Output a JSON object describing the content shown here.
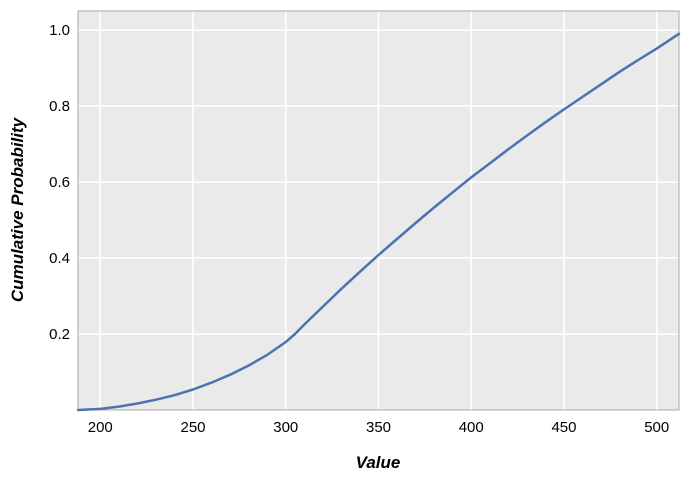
{
  "chart_data": {
    "type": "line",
    "title": "",
    "xlabel": "Value",
    "ylabel": "Cumulative Probability",
    "xlim": [
      188,
      512
    ],
    "ylim": [
      0,
      1.05
    ],
    "x_ticks": [
      200,
      250,
      300,
      350,
      400,
      450,
      500
    ],
    "x_tick_labels": [
      "200",
      "250",
      "300",
      "350",
      "400",
      "450",
      "500"
    ],
    "y_ticks": [
      0.2,
      0.4,
      0.6,
      0.8,
      1.0
    ],
    "y_tick_labels": [
      "0.2",
      "0.4",
      "0.6",
      "0.8",
      "1.0"
    ],
    "grid": true,
    "colors": {
      "line": "#4c72b0",
      "plot_background": "#eaeaea",
      "grid": "#ffffff",
      "frame": "#aaaaaa"
    },
    "series": [
      {
        "x": [
          188,
          200,
          210,
          220,
          230,
          240,
          250,
          260,
          270,
          280,
          290,
          300,
          305,
          310,
          320,
          330,
          340,
          350,
          360,
          370,
          380,
          390,
          400,
          410,
          420,
          430,
          440,
          450,
          460,
          470,
          480,
          490,
          500,
          512
        ],
        "values": [
          0.0,
          0.003,
          0.009,
          0.017,
          0.027,
          0.039,
          0.054,
          0.072,
          0.093,
          0.117,
          0.145,
          0.179,
          0.2,
          0.225,
          0.272,
          0.319,
          0.364,
          0.408,
          0.45,
          0.492,
          0.533,
          0.573,
          0.612,
          0.649,
          0.686,
          0.722,
          0.757,
          0.791,
          0.824,
          0.857,
          0.89,
          0.921,
          0.951,
          0.99
        ]
      }
    ]
  }
}
